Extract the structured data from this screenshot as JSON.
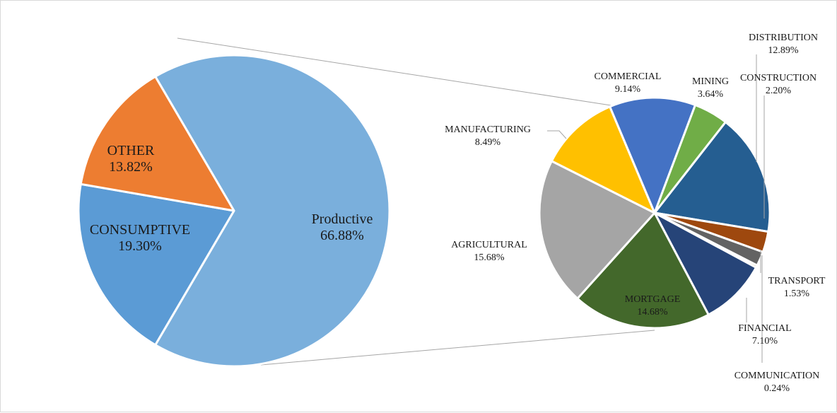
{
  "chart_data": {
    "type": "bar-of-pie",
    "main_pie": {
      "slices": [
        {
          "label": "Productive",
          "value": 66.88,
          "value_label": "66.88%",
          "color": "#7aafdc"
        },
        {
          "label": "CONSUMPTIVE",
          "value": 19.3,
          "value_label": "19.30%",
          "color": "#5b9bd5"
        },
        {
          "label": "OTHER",
          "value": 13.82,
          "value_label": "13.82%",
          "color": "#ed7d31"
        }
      ]
    },
    "secondary_pie": {
      "slices": [
        {
          "label": "DISTRIBUTION",
          "value": 12.89,
          "value_label": "12.89%",
          "color": "#255e91"
        },
        {
          "label": "CONSTRUCTION",
          "value": 2.2,
          "value_label": "2.20%",
          "color": "#9e480e"
        },
        {
          "label": "TRANSPORT",
          "value": 1.53,
          "value_label": "1.53%",
          "color": "#636363"
        },
        {
          "label": "COMMUNICATION",
          "value": 0.24,
          "value_label": "0.24%",
          "color": "#997300"
        },
        {
          "label": "FINANCIAL",
          "value": 7.1,
          "value_label": "7.10%",
          "color": "#264478"
        },
        {
          "label": "MORTGAGE",
          "value": 14.68,
          "value_label": "14.68%",
          "color": "#43682b"
        },
        {
          "label": "AGRICULTURAL",
          "value": 15.68,
          "value_label": "15.68%",
          "color": "#a5a5a5"
        },
        {
          "label": "MANUFACTURING",
          "value": 8.49,
          "value_label": "8.49%",
          "color": "#ffc000"
        },
        {
          "label": "COMMERCIAL",
          "value": 9.14,
          "value_label": "9.14%",
          "color": "#4472c4"
        },
        {
          "label": "MINING",
          "value": 3.64,
          "value_label": "3.64%",
          "color": "#70ad47"
        }
      ]
    }
  }
}
